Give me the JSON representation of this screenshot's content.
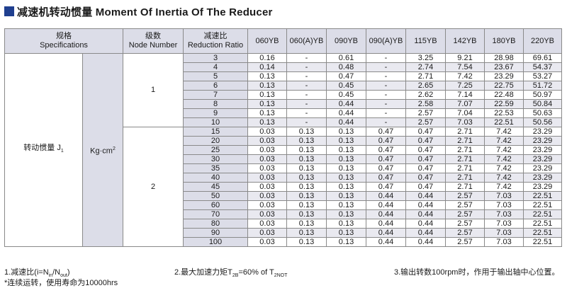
{
  "title": {
    "cn": "减速机转动惯量",
    "en": "Moment Of Inertia Of The Reducer"
  },
  "headers": {
    "spec_cn": "规格",
    "spec_en": "Specifications",
    "node_cn": "级数",
    "node_en": "Node Number",
    "ratio_cn": "减速比",
    "ratio_en": "Reduction Ratio",
    "models": [
      "060YB",
      "060(A)YB",
      "090YB",
      "090(A)YB",
      "115YB",
      "142YB",
      "180YB",
      "220YB"
    ]
  },
  "row_label": {
    "text": "转动惯量 J",
    "sub": "1"
  },
  "unit": {
    "text": "Kg·cm",
    "sup": "2"
  },
  "groups": [
    {
      "node": "1",
      "rows": [
        {
          "ratio": "3",
          "values": [
            "0.16",
            "-",
            "0.61",
            "-",
            "3.25",
            "9.21",
            "28.98",
            "69.61"
          ]
        },
        {
          "ratio": "4",
          "values": [
            "0.14",
            "-",
            "0.48",
            "-",
            "2.74",
            "7.54",
            "23.67",
            "54.37"
          ]
        },
        {
          "ratio": "5",
          "values": [
            "0.13",
            "-",
            "0.47",
            "-",
            "2.71",
            "7.42",
            "23.29",
            "53.27"
          ]
        },
        {
          "ratio": "6",
          "values": [
            "0.13",
            "-",
            "0.45",
            "-",
            "2.65",
            "7.25",
            "22.75",
            "51.72"
          ]
        },
        {
          "ratio": "7",
          "values": [
            "0.13",
            "-",
            "0.45",
            "-",
            "2.62",
            "7.14",
            "22.48",
            "50.97"
          ]
        },
        {
          "ratio": "8",
          "values": [
            "0.13",
            "-",
            "0.44",
            "-",
            "2.58",
            "7.07",
            "22.59",
            "50.84"
          ]
        },
        {
          "ratio": "9",
          "values": [
            "0.13",
            "-",
            "0.44",
            "-",
            "2.57",
            "7.04",
            "22.53",
            "50.63"
          ]
        },
        {
          "ratio": "10",
          "values": [
            "0.13",
            "-",
            "0.44",
            "-",
            "2.57",
            "7.03",
            "22.51",
            "50.56"
          ]
        }
      ]
    },
    {
      "node": "2",
      "rows": [
        {
          "ratio": "15",
          "values": [
            "0.03",
            "0.13",
            "0.13",
            "0.47",
            "0.47",
            "2.71",
            "7.42",
            "23.29"
          ]
        },
        {
          "ratio": "20",
          "values": [
            "0.03",
            "0.13",
            "0.13",
            "0.47",
            "0.47",
            "2.71",
            "7.42",
            "23.29"
          ]
        },
        {
          "ratio": "25",
          "values": [
            "0.03",
            "0.13",
            "0.13",
            "0.47",
            "0.47",
            "2.71",
            "7.42",
            "23.29"
          ]
        },
        {
          "ratio": "30",
          "values": [
            "0.03",
            "0.13",
            "0.13",
            "0.47",
            "0.47",
            "2.71",
            "7.42",
            "23.29"
          ]
        },
        {
          "ratio": "35",
          "values": [
            "0.03",
            "0.13",
            "0.13",
            "0.47",
            "0.47",
            "2.71",
            "7.42",
            "23.29"
          ]
        },
        {
          "ratio": "40",
          "values": [
            "0.03",
            "0.13",
            "0.13",
            "0.47",
            "0.47",
            "2.71",
            "7.42",
            "23.29"
          ]
        },
        {
          "ratio": "45",
          "values": [
            "0.03",
            "0.13",
            "0.13",
            "0.47",
            "0.47",
            "2.71",
            "7.42",
            "23.29"
          ]
        },
        {
          "ratio": "50",
          "values": [
            "0.03",
            "0.13",
            "0.13",
            "0.44",
            "0.44",
            "2.57",
            "7.03",
            "22.51"
          ]
        },
        {
          "ratio": "60",
          "values": [
            "0.03",
            "0.13",
            "0.13",
            "0.44",
            "0.44",
            "2.57",
            "7.03",
            "22.51"
          ]
        },
        {
          "ratio": "70",
          "values": [
            "0.03",
            "0.13",
            "0.13",
            "0.44",
            "0.44",
            "2.57",
            "7.03",
            "22.51"
          ]
        },
        {
          "ratio": "80",
          "values": [
            "0.03",
            "0.13",
            "0.13",
            "0.44",
            "0.44",
            "2.57",
            "7.03",
            "22.51"
          ]
        },
        {
          "ratio": "90",
          "values": [
            "0.03",
            "0.13",
            "0.13",
            "0.44",
            "0.44",
            "2.57",
            "7.03",
            "22.51"
          ]
        },
        {
          "ratio": "100",
          "values": [
            "0.03",
            "0.13",
            "0.13",
            "0.44",
            "0.44",
            "2.57",
            "7.03",
            "22.51"
          ]
        }
      ]
    }
  ],
  "footnotes": {
    "note1": {
      "prefix": "1.减速比(i=N",
      "sub1": "in",
      "mid": "/N",
      "sub2": "out",
      "suffix": ")"
    },
    "note2": {
      "prefix": "2.最大加速力矩T",
      "sub1": "2B",
      "mid": "=60% of T",
      "sub2": "2NOT"
    },
    "note3": "3.输出转数100rpm时，作用于输出轴中心位置。",
    "note4": "*连续运转，使用寿命为10000hrs"
  },
  "colors": {
    "accent": "#1f3f8f",
    "header_bg": "#dcdde8",
    "stripe_bg": "#e9e9f0",
    "border": "#8a8a8a"
  }
}
